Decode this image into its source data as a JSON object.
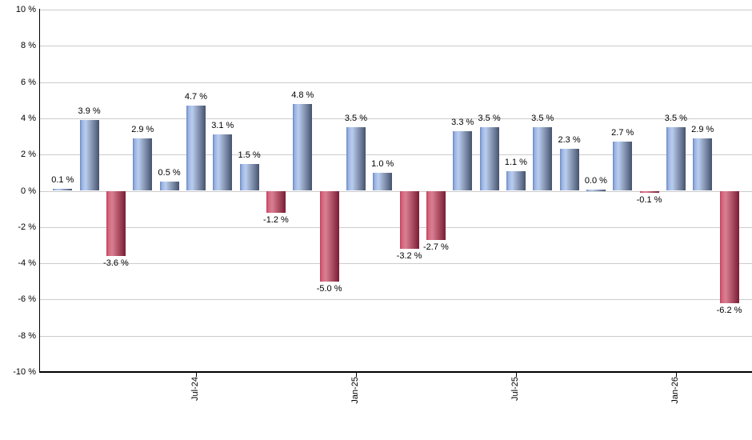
{
  "chart_data": {
    "type": "bar",
    "title": "",
    "xlabel": "",
    "ylabel": "",
    "unit": "%",
    "ylim": [
      -10,
      10
    ],
    "grid": true,
    "legend_position": "none",
    "y_tick_values": [
      10,
      8,
      6,
      4,
      2,
      0,
      -2,
      -4,
      -6,
      -8,
      -10
    ],
    "y_tick_labels": [
      "10 %",
      "8 %",
      "6 %",
      "4 %",
      "2 %",
      "0 %",
      "-2 %",
      "-4 %",
      "-6 %",
      "-8 %",
      "-10 %"
    ],
    "values": [
      0.1,
      3.9,
      -3.6,
      2.9,
      0.5,
      4.7,
      3.1,
      1.5,
      -1.2,
      4.8,
      -5.0,
      3.5,
      1.0,
      -3.2,
      -2.7,
      3.3,
      3.5,
      1.1,
      3.5,
      2.3,
      0.0,
      2.7,
      -0.1,
      3.5,
      2.9,
      -6.2
    ],
    "bar_labels": [
      "0.1 %",
      "3.9 %",
      "-3.6 %",
      "2.9 %",
      "0.5 %",
      "4.7 %",
      "3.1 %",
      "1.5 %",
      "-1.2 %",
      "4.8 %",
      "-5.0 %",
      "3.5 %",
      "1.0 %",
      "-3.2 %",
      "-2.7 %",
      "3.3 %",
      "3.5 %",
      "1.1 %",
      "3.5 %",
      "2.3 %",
      "0.0 %",
      "2.7 %",
      "-0.1 %",
      "3.5 %",
      "2.9 %",
      "-6.2 %"
    ],
    "x_ticks": [
      {
        "label": "Jul-24",
        "bar_index": 5
      },
      {
        "label": "Jan-25",
        "bar_index": 11
      },
      {
        "label": "Jul-25",
        "bar_index": 17
      },
      {
        "label": "Jan-26",
        "bar_index": 23
      }
    ],
    "colors": {
      "positive_edge": "#6F89BE",
      "positive_bright": "#9DB7E6",
      "positive_light": "#BACDEE",
      "positive_dark": "#46536E",
      "negative_edge": "#C2405C",
      "negative_bright": "#D4687F",
      "negative_light": "#DA7E93",
      "negative_dark": "#7A1C33",
      "gridline": "#CCCCCC",
      "axis": "#000000",
      "label_text": "#000000",
      "background": "#FFFFFF"
    }
  }
}
